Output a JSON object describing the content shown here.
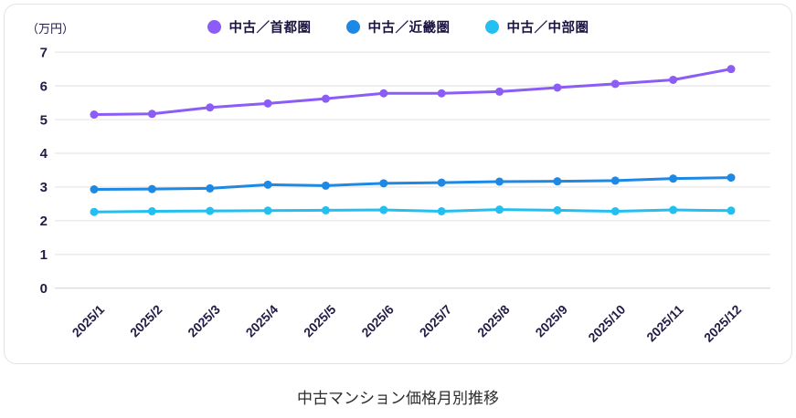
{
  "title": "中古マンション価格月別推移",
  "unit_label": "（万円）",
  "chart_data": {
    "type": "line",
    "title": "中古マンション価格月別推移",
    "categories": [
      "2025/1",
      "2025/2",
      "2025/3",
      "2025/4",
      "2025/5",
      "2025/6",
      "2025/7",
      "2025/8",
      "2025/9",
      "2025/10",
      "2025/11",
      "2025/12"
    ],
    "series": [
      {
        "name": "中古／首都圏",
        "color": "#8B5CF6",
        "values": [
          5.15,
          5.17,
          5.36,
          5.48,
          5.62,
          5.78,
          5.78,
          5.83,
          5.95,
          6.06,
          6.18,
          6.5
        ]
      },
      {
        "name": "中古／近畿圏",
        "color": "#1E88E5",
        "values": [
          2.93,
          2.94,
          2.96,
          3.07,
          3.04,
          3.11,
          3.13,
          3.16,
          3.17,
          3.19,
          3.25,
          3.28
        ]
      },
      {
        "name": "中古／中部圏",
        "color": "#22BFF0",
        "values": [
          2.26,
          2.28,
          2.29,
          2.3,
          2.31,
          2.32,
          2.28,
          2.33,
          2.31,
          2.28,
          2.32,
          2.3
        ]
      }
    ],
    "ylabel": "万円",
    "ylim": [
      0,
      7
    ],
    "yticks": [
      0,
      1,
      2,
      3,
      4,
      5,
      6,
      7
    ],
    "grid": true,
    "legend_position": "top",
    "x_tick_rotation": -45,
    "grid_color": "#e9e9e9",
    "zero_line_color": "#dcdcdc"
  }
}
